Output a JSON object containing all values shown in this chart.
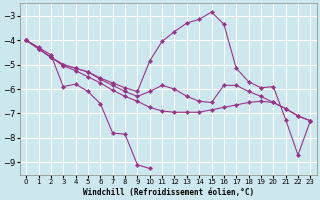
{
  "xlabel": "Windchill (Refroidissement éolien,°C)",
  "bg_color": "#cce8ee",
  "grid_color": "#ffffff",
  "line_color": "#993388",
  "ylim": [
    -9.5,
    -2.5
  ],
  "xlim": [
    -0.5,
    23.5
  ],
  "yticks": [
    -9,
    -8,
    -7,
    -6,
    -5,
    -4,
    -3
  ],
  "xticks": [
    0,
    1,
    2,
    3,
    4,
    5,
    6,
    7,
    8,
    9,
    10,
    11,
    12,
    13,
    14,
    15,
    16,
    17,
    18,
    19,
    20,
    21,
    22,
    23
  ],
  "curves": [
    {
      "x": [
        0,
        1,
        2,
        3,
        4,
        5,
        6,
        7,
        8,
        9,
        10
      ],
      "y": [
        -4.0,
        -4.3,
        -4.6,
        -5.9,
        -5.8,
        -6.1,
        -6.6,
        -7.8,
        -7.85,
        -9.1,
        -9.25
      ]
    },
    {
      "x": [
        0,
        1,
        2,
        3,
        4,
        5,
        6,
        7,
        8,
        9,
        10,
        11,
        12,
        13,
        14,
        15,
        16,
        17,
        18,
        19,
        20,
        21,
        22,
        23
      ],
      "y": [
        -4.0,
        -4.35,
        -4.7,
        -5.0,
        -5.15,
        -5.3,
        -5.55,
        -5.75,
        -5.95,
        -6.1,
        -4.85,
        -4.05,
        -3.65,
        -3.3,
        -3.15,
        -2.85,
        -3.35,
        -5.15,
        -5.7,
        -5.95,
        -5.9,
        -7.25,
        -8.7,
        -7.3
      ]
    },
    {
      "x": [
        0,
        1,
        2,
        3,
        4,
        5,
        6,
        7,
        8,
        9,
        10,
        11,
        12,
        13,
        14,
        15,
        16,
        17,
        18,
        19,
        20,
        21,
        22,
        23
      ],
      "y": [
        -4.0,
        -4.35,
        -4.7,
        -5.0,
        -5.15,
        -5.3,
        -5.6,
        -5.85,
        -6.1,
        -6.3,
        -6.1,
        -5.85,
        -6.0,
        -6.3,
        -6.5,
        -6.55,
        -5.85,
        -5.85,
        -6.1,
        -6.3,
        -6.55,
        -6.8,
        -7.1,
        -7.3
      ]
    },
    {
      "x": [
        0,
        1,
        2,
        3,
        4,
        5,
        6,
        7,
        8,
        9,
        10,
        11,
        12,
        13,
        14,
        15,
        16,
        17,
        18,
        19,
        20,
        21,
        22,
        23
      ],
      "y": [
        -4.0,
        -4.35,
        -4.7,
        -5.05,
        -5.25,
        -5.5,
        -5.75,
        -6.05,
        -6.3,
        -6.5,
        -6.75,
        -6.9,
        -6.95,
        -6.95,
        -6.95,
        -6.85,
        -6.75,
        -6.65,
        -6.55,
        -6.5,
        -6.55,
        -6.8,
        -7.1,
        -7.3
      ]
    }
  ]
}
